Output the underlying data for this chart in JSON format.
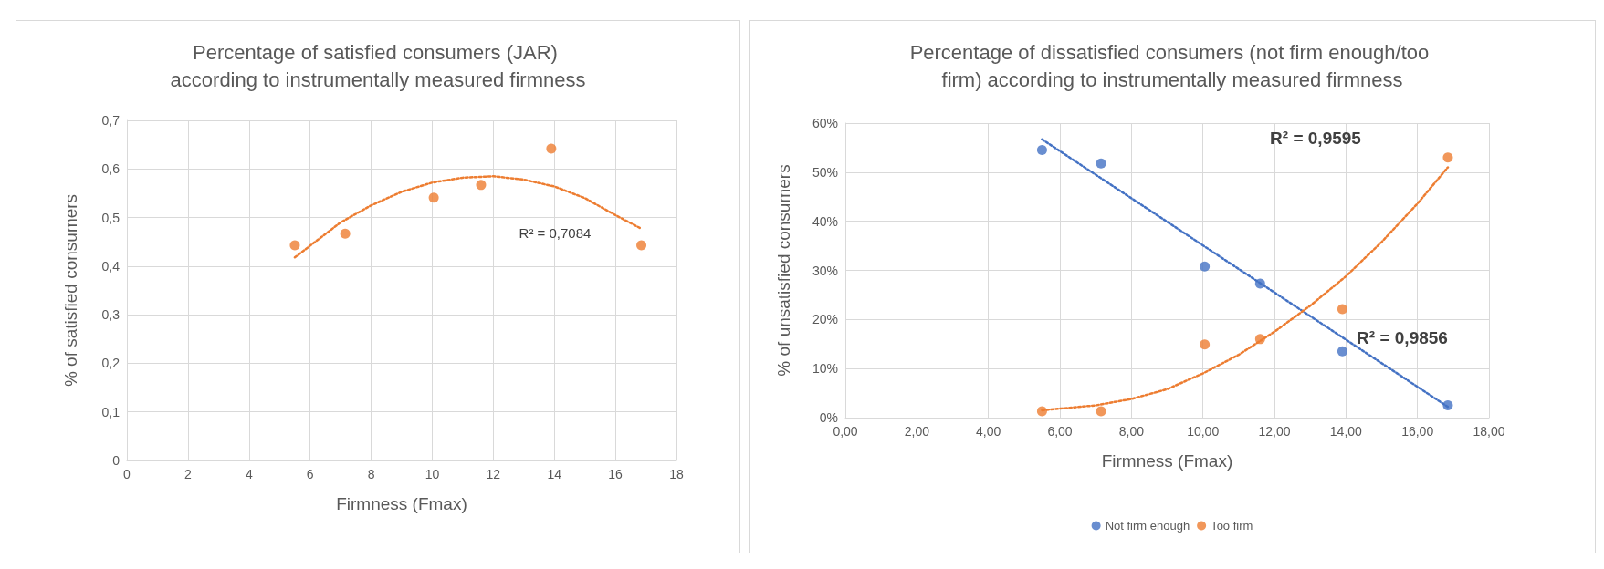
{
  "chart_data": [
    {
      "type": "scatter",
      "title": "Percentage of satisfied consumers (JAR) according to instrumentally measured firmness",
      "xlabel": "Firmness (Fmax)",
      "ylabel": "% of satisfied consumers",
      "xlim": [
        0,
        18
      ],
      "xticks": [
        0,
        2,
        4,
        6,
        8,
        10,
        12,
        14,
        16,
        18
      ],
      "ylim": [
        0,
        0.7
      ],
      "yticks": [
        {
          "value": 0,
          "label": "0"
        },
        {
          "value": 0.1,
          "label": "0,1"
        },
        {
          "value": 0.2,
          "label": "0,2"
        },
        {
          "value": 0.3,
          "label": "0,3"
        },
        {
          "value": 0.4,
          "label": "0,4"
        },
        {
          "value": 0.5,
          "label": "0,5"
        },
        {
          "value": 0.6,
          "label": "0,6"
        },
        {
          "value": 0.7,
          "label": "0,7"
        }
      ],
      "grid": true,
      "legend": false,
      "marker": "circle",
      "x": [
        5.5,
        7.15,
        10.05,
        11.6,
        13.9,
        16.85
      ],
      "series": [
        {
          "color": "#ed7d31",
          "values": [
            0.443,
            0.467,
            0.541,
            0.567,
            0.642,
            0.443
          ]
        },
        {
          "type": "line",
          "color": "#ed7d31",
          "marker": "none",
          "line_style": "dotted",
          "x": [
            5.5,
            7,
            8,
            9,
            10,
            11,
            12,
            13,
            14,
            15,
            16,
            16.85
          ],
          "values": [
            0.418,
            0.49,
            0.525,
            0.553,
            0.572,
            0.582,
            0.585,
            0.578,
            0.564,
            0.54,
            0.505,
            0.477
          ]
        }
      ],
      "annotations": [
        "R² = 0,7084"
      ]
    },
    {
      "type": "scatter",
      "title": "Percentage of dissatisfied consumers (not firm enough/too firm) according to instrumentally measured firmness",
      "xlabel": "Firmness (Fmax)",
      "ylabel": "% of unsatisfied consumers",
      "xlim": [
        0,
        18
      ],
      "xticks": [
        {
          "value": 0,
          "label": "0,00"
        },
        {
          "value": 2,
          "label": "2,00"
        },
        {
          "value": 4,
          "label": "4,00"
        },
        {
          "value": 6,
          "label": "6,00"
        },
        {
          "value": 8,
          "label": "8,00"
        },
        {
          "value": 10,
          "label": "10,00"
        },
        {
          "value": 12,
          "label": "12,00"
        },
        {
          "value": 14,
          "label": "14,00"
        },
        {
          "value": 16,
          "label": "16,00"
        },
        {
          "value": 18,
          "label": "18,00"
        }
      ],
      "ylim": [
        0,
        60
      ],
      "yticks": [
        {
          "value": 0,
          "label": "0%"
        },
        {
          "value": 10,
          "label": "10%"
        },
        {
          "value": 20,
          "label": "20%"
        },
        {
          "value": 30,
          "label": "30%"
        },
        {
          "value": 40,
          "label": "40%"
        },
        {
          "value": 50,
          "label": "50%"
        },
        {
          "value": 60,
          "label": "60%"
        }
      ],
      "grid": true,
      "legend": "bottom",
      "marker": "circle",
      "x": [
        5.5,
        7.15,
        10.05,
        11.6,
        13.9,
        16.85
      ],
      "series": [
        {
          "name": "Not firm enough",
          "color": "#4472c4",
          "values": [
            54.5,
            51.8,
            30.8,
            27.3,
            13.5,
            2.5
          ]
        },
        {
          "name": "Too firm",
          "color": "#ed7d31",
          "values": [
            1.3,
            1.3,
            14.9,
            16.0,
            22.1,
            53.0
          ]
        },
        {
          "type": "line",
          "color": "#4472c4",
          "marker": "none",
          "line_style": "dotted",
          "x": [
            5.5,
            16.85
          ],
          "values": [
            56.7,
            2.2
          ]
        },
        {
          "type": "line",
          "color": "#ed7d31",
          "marker": "none",
          "line_style": "dotted",
          "x": [
            5.5,
            7,
            8,
            9,
            10,
            11,
            12,
            13,
            14,
            15,
            16,
            16.85
          ],
          "values": [
            1.5,
            2.5,
            3.8,
            5.8,
            9,
            12.8,
            17.5,
            22.8,
            28.8,
            35.8,
            43.6,
            51
          ]
        }
      ],
      "annotations": [
        "R² = 0,9595",
        "R² = 0,9856"
      ]
    }
  ]
}
